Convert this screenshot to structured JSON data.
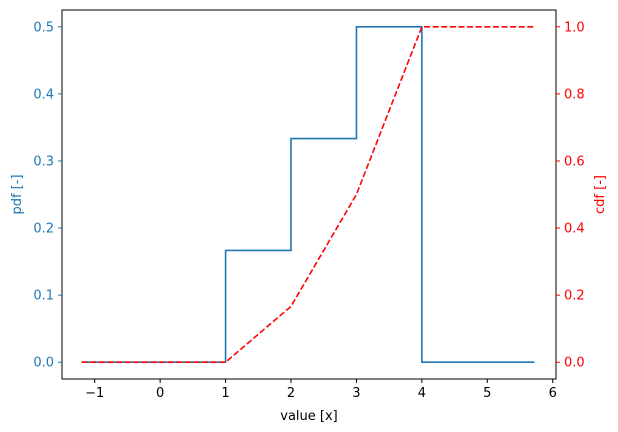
{
  "chart_data": {
    "type": "line",
    "xlabel": "value [x]",
    "ylabel_left": "pdf [-]",
    "ylabel_right": "cdf [-]",
    "xlim": [
      -1.5,
      6.05
    ],
    "ylim_left": [
      -0.025,
      0.525
    ],
    "ylim_right": [
      -0.05,
      1.05
    ],
    "xticks": [
      -1,
      0,
      1,
      2,
      3,
      4,
      5,
      6
    ],
    "yticks_left": [
      0.0,
      0.1,
      0.2,
      0.3,
      0.4,
      0.5
    ],
    "yticks_right": [
      0.0,
      0.2,
      0.4,
      0.6,
      0.8,
      1.0
    ],
    "xtick_labels": [
      "−1",
      "0",
      "1",
      "2",
      "3",
      "4",
      "5",
      "6"
    ],
    "ytick_labels_left": [
      "0.0",
      "0.1",
      "0.2",
      "0.3",
      "0.4",
      "0.5"
    ],
    "ytick_labels_right": [
      "0.0",
      "0.2",
      "0.4",
      "0.6",
      "0.8",
      "1.0"
    ],
    "grid": false,
    "colors": {
      "left_axis": "#1f77b4",
      "right_axis": "#ff0000",
      "pdf": "#1f77b4",
      "cdf": "#ff0000"
    },
    "series": [
      {
        "axis": "left",
        "style": "step",
        "x": [
          -1.2,
          1,
          1,
          2,
          2,
          3,
          3,
          4,
          4,
          5.72
        ],
        "y": [
          0,
          0,
          0.1667,
          0.1667,
          0.3333,
          0.3333,
          0.5,
          0.5,
          0,
          0
        ]
      },
      {
        "axis": "right",
        "style": "dashed",
        "x": [
          -1.2,
          1,
          2,
          3,
          4,
          5.72
        ],
        "y": [
          0,
          0,
          0.1667,
          0.5,
          1.0,
          1.0
        ]
      }
    ]
  }
}
